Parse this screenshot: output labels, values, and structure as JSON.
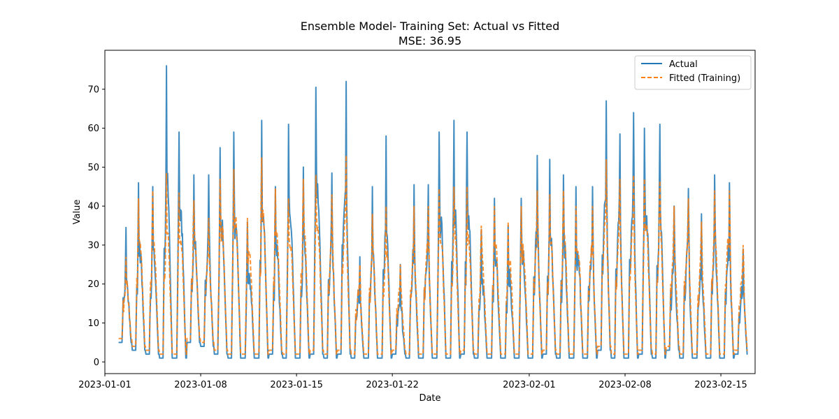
{
  "chart_data": {
    "type": "line",
    "title": "Ensemble Model- Training Set: Actual vs Fitted",
    "subtitle": "MSE: 36.95",
    "xlabel": "Date",
    "ylabel": "Value",
    "x_start": "2023-01-02 00:00",
    "x_end": "2023-02-16 23:00",
    "xlim": [
      "2023-01-01 00:00",
      "2023-02-17 12:00"
    ],
    "ylim": [
      -3,
      80
    ],
    "x_ticks": [
      "2023-01-01",
      "2023-01-08",
      "2023-01-15",
      "2023-01-22",
      "2023-02-01",
      "2023-02-08",
      "2023-02-15"
    ],
    "y_ticks": [
      0,
      10,
      20,
      30,
      40,
      50,
      60,
      70
    ],
    "grid": false,
    "legend_position": "top-right",
    "series": [
      {
        "name": "Actual",
        "color": "#1f77b4",
        "style": "solid"
      },
      {
        "name": "Fitted (Training)",
        "color": "#ff7f0e",
        "style": "dashed"
      }
    ],
    "daily_peaks": {
      "dates": [
        "2023-01-02",
        "2023-01-03",
        "2023-01-04",
        "2023-01-05",
        "2023-01-06",
        "2023-01-07",
        "2023-01-08",
        "2023-01-09",
        "2023-01-10",
        "2023-01-11",
        "2023-01-12",
        "2023-01-13",
        "2023-01-14",
        "2023-01-15",
        "2023-01-16",
        "2023-01-17",
        "2023-01-18",
        "2023-01-19",
        "2023-01-20",
        "2023-01-21",
        "2023-01-22",
        "2023-01-23",
        "2023-01-24",
        "2023-01-25",
        "2023-01-26",
        "2023-01-27",
        "2023-01-28",
        "2023-01-29",
        "2023-01-30",
        "2023-01-31",
        "2023-02-01",
        "2023-02-02",
        "2023-02-03",
        "2023-02-04",
        "2023-02-05",
        "2023-02-06",
        "2023-02-07",
        "2023-02-08",
        "2023-02-09",
        "2023-02-10",
        "2023-02-11",
        "2023-02-12",
        "2023-02-13",
        "2023-02-14",
        "2023-02-15",
        "2023-02-16"
      ],
      "actual": [
        34.5,
        46,
        45,
        76,
        59,
        48,
        48,
        55,
        59,
        36,
        62,
        45,
        61,
        50,
        70.5,
        48.5,
        72,
        27,
        45,
        58,
        25,
        45.5,
        45.5,
        59,
        62,
        59,
        34,
        42,
        35,
        42,
        53,
        52,
        48,
        45,
        45,
        67,
        58.5,
        64,
        60,
        61,
        40,
        44.5,
        38,
        48,
        46,
        29
      ],
      "fitted": [
        27,
        42,
        44,
        48.5,
        43.5,
        41.5,
        37,
        47,
        49.5,
        37,
        52.5,
        44.5,
        42,
        47,
        48,
        43,
        53,
        25,
        38,
        40,
        25,
        40,
        40,
        44.5,
        45,
        45,
        35,
        40,
        36,
        40,
        44,
        43,
        44,
        40,
        40,
        52,
        47,
        48,
        47,
        46.5,
        40,
        42,
        36,
        44,
        44,
        30
      ],
      "troughs": [
        5,
        3,
        2,
        1,
        1,
        5,
        4,
        2,
        1,
        1,
        1,
        2,
        1,
        1,
        2,
        1,
        2,
        1,
        1,
        1,
        2,
        1,
        1,
        1,
        1,
        2,
        1,
        1,
        1,
        1,
        1,
        2,
        1,
        1,
        1,
        3,
        1,
        1,
        2,
        1,
        3,
        1,
        1,
        1,
        1,
        2
      ]
    }
  }
}
